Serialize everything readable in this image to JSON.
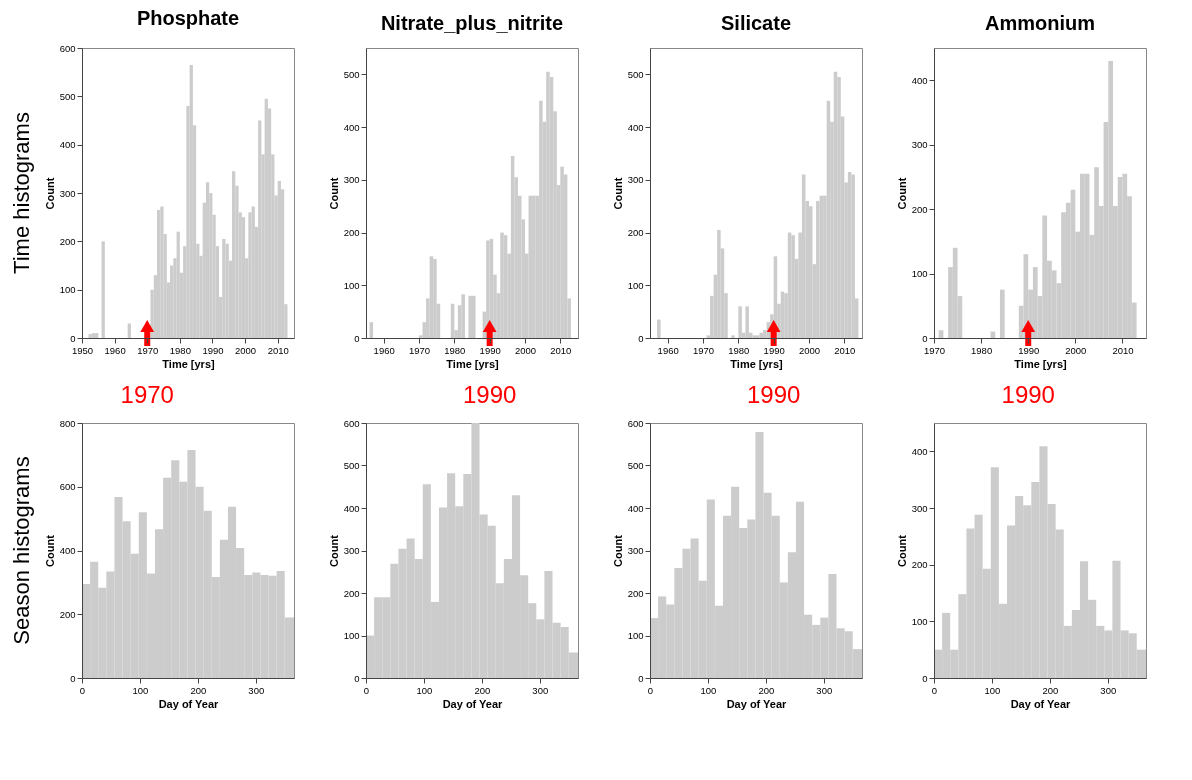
{
  "chart_data": [
    {
      "type": "histogram",
      "title": "Phosphate",
      "xlabel": "Time [yrs]",
      "ylabel": "Count",
      "color": "#cccccc",
      "xlim": [
        1950,
        2015
      ],
      "xticks": [
        1950,
        1960,
        1970,
        1980,
        1990,
        2000,
        2010
      ],
      "ylim": [
        0,
        600
      ],
      "yticks": [
        0,
        100,
        200,
        300,
        400,
        500,
        600
      ],
      "bins": [
        1950,
        1951,
        1952,
        1953,
        1954,
        1955,
        1956,
        1957,
        1958,
        1959,
        1960,
        1961,
        1962,
        1963,
        1964,
        1965,
        1966,
        1967,
        1968,
        1969,
        1970,
        1971,
        1972,
        1973,
        1974,
        1975,
        1976,
        1977,
        1978,
        1979,
        1980,
        1981,
        1982,
        1983,
        1984,
        1985,
        1986,
        1987,
        1988,
        1989,
        1990,
        1991,
        1992,
        1993,
        1994,
        1995,
        1996,
        1997,
        1998,
        1999,
        2000,
        2001,
        2002,
        2003,
        2004,
        2005,
        2006,
        2007,
        2008,
        2009,
        2010,
        2011,
        2012,
        2013,
        2014,
        2015
      ],
      "values": [
        0,
        0,
        8,
        10,
        10,
        0,
        200,
        0,
        0,
        0,
        0,
        0,
        0,
        0,
        30,
        0,
        0,
        0,
        0,
        0,
        0,
        100,
        130,
        265,
        272,
        215,
        115,
        150,
        165,
        220,
        135,
        190,
        480,
        565,
        440,
        195,
        170,
        280,
        322,
        300,
        255,
        190,
        85,
        205,
        195,
        160,
        345,
        315,
        260,
        250,
        165,
        260,
        272,
        230,
        450,
        380,
        495,
        475,
        380,
        295,
        325,
        308,
        70,
        0,
        0
      ],
      "annotations": [
        "Time histograms"
      ],
      "ref_lines": [
        {
          "axis": "x",
          "value": 1970,
          "label": "1970",
          "color": "#ff0000"
        }
      ]
    },
    {
      "type": "histogram",
      "title": "Nitrate_plus_nitrite",
      "xlabel": "Time [yrs]",
      "ylabel": "Count",
      "color": "#cccccc",
      "xlim": [
        1955,
        2015
      ],
      "xticks": [
        1960,
        1970,
        1980,
        1990,
        2000,
        2010
      ],
      "ylim": [
        0,
        550
      ],
      "yticks": [
        0,
        100,
        200,
        300,
        400,
        500
      ],
      "bins": [
        1955,
        1956,
        1957,
        1958,
        1959,
        1960,
        1961,
        1962,
        1963,
        1964,
        1965,
        1966,
        1967,
        1968,
        1969,
        1970,
        1971,
        1972,
        1973,
        1974,
        1975,
        1976,
        1977,
        1978,
        1979,
        1980,
        1981,
        1982,
        1983,
        1984,
        1985,
        1986,
        1987,
        1988,
        1989,
        1990,
        1991,
        1992,
        1993,
        1994,
        1995,
        1996,
        1997,
        1998,
        1999,
        2000,
        2001,
        2002,
        2003,
        2004,
        2005,
        2006,
        2007,
        2008,
        2009,
        2010,
        2011,
        2012,
        2013,
        2014,
        2015
      ],
      "values": [
        0,
        30,
        0,
        0,
        0,
        0,
        0,
        0,
        0,
        0,
        0,
        0,
        0,
        0,
        0,
        5,
        30,
        75,
        155,
        150,
        65,
        0,
        0,
        0,
        65,
        15,
        62,
        83,
        0,
        80,
        80,
        0,
        0,
        50,
        185,
        188,
        120,
        85,
        200,
        195,
        160,
        345,
        305,
        270,
        225,
        160,
        270,
        270,
        270,
        450,
        410,
        505,
        495,
        430,
        290,
        325,
        310,
        75,
        0,
        0
      ],
      "ref_lines": [
        {
          "axis": "x",
          "value": 1990,
          "label": "1990",
          "color": "#ff0000"
        }
      ]
    },
    {
      "type": "histogram",
      "title": "Silicate",
      "xlabel": "Time [yrs]",
      "ylabel": "Count",
      "color": "#cccccc",
      "xlim": [
        1955,
        2015
      ],
      "xticks": [
        1960,
        1970,
        1980,
        1990,
        2000,
        2010
      ],
      "ylim": [
        0,
        550
      ],
      "yticks": [
        0,
        100,
        200,
        300,
        400,
        500
      ],
      "bins": [
        1955,
        1956,
        1957,
        1958,
        1959,
        1960,
        1961,
        1962,
        1963,
        1964,
        1965,
        1966,
        1967,
        1968,
        1969,
        1970,
        1971,
        1972,
        1973,
        1974,
        1975,
        1976,
        1977,
        1978,
        1979,
        1980,
        1981,
        1982,
        1983,
        1984,
        1985,
        1986,
        1987,
        1988,
        1989,
        1990,
        1991,
        1992,
        1993,
        1994,
        1995,
        1996,
        1997,
        1998,
        1999,
        2000,
        2001,
        2002,
        2003,
        2004,
        2005,
        2006,
        2007,
        2008,
        2009,
        2010,
        2011,
        2012,
        2013,
        2014,
        2015
      ],
      "values": [
        0,
        0,
        35,
        0,
        0,
        0,
        0,
        0,
        0,
        0,
        0,
        0,
        0,
        0,
        0,
        0,
        5,
        80,
        120,
        205,
        170,
        85,
        0,
        5,
        0,
        60,
        10,
        60,
        10,
        5,
        5,
        10,
        15,
        30,
        45,
        155,
        65,
        88,
        85,
        200,
        195,
        150,
        200,
        310,
        260,
        250,
        140,
        260,
        270,
        270,
        450,
        410,
        505,
        495,
        420,
        295,
        315,
        310,
        75,
        0
      ],
      "ref_lines": [
        {
          "axis": "x",
          "value": 1990,
          "label": "1990",
          "color": "#ff0000"
        }
      ]
    },
    {
      "type": "histogram",
      "title": "Ammonium",
      "xlabel": "Time [yrs]",
      "ylabel": "Count",
      "color": "#cccccc",
      "xlim": [
        1970,
        2015
      ],
      "xticks": [
        1970,
        1980,
        1990,
        2000,
        2010
      ],
      "ylim": [
        0,
        450
      ],
      "yticks": [
        0,
        100,
        200,
        300,
        400
      ],
      "bins": [
        1970,
        1971,
        1972,
        1973,
        1974,
        1975,
        1976,
        1977,
        1978,
        1979,
        1980,
        1981,
        1982,
        1983,
        1984,
        1985,
        1986,
        1987,
        1988,
        1989,
        1990,
        1991,
        1992,
        1993,
        1994,
        1995,
        1996,
        1997,
        1998,
        1999,
        2000,
        2001,
        2002,
        2003,
        2004,
        2005,
        2006,
        2007,
        2008,
        2009,
        2010,
        2011,
        2012,
        2013,
        2014,
        2015
      ],
      "values": [
        0,
        12,
        0,
        110,
        140,
        65,
        0,
        0,
        0,
        0,
        0,
        0,
        10,
        0,
        75,
        0,
        0,
        0,
        50,
        130,
        75,
        110,
        65,
        190,
        120,
        105,
        85,
        195,
        210,
        230,
        165,
        255,
        255,
        160,
        265,
        205,
        335,
        430,
        205,
        250,
        255,
        220,
        55,
        0,
        0
      ],
      "ref_lines": [
        {
          "axis": "x",
          "value": 1990,
          "label": "1990",
          "color": "#ff0000"
        }
      ]
    },
    {
      "type": "histogram",
      "xlabel": "Day of Year",
      "ylabel": "Count",
      "color": "#cccccc",
      "xlim": [
        0,
        366
      ],
      "xticks": [
        0,
        100,
        200,
        300
      ],
      "ylim": [
        0,
        800
      ],
      "yticks": [
        0,
        200,
        400,
        600,
        800
      ],
      "bins": [
        0,
        14,
        28,
        42,
        56,
        70,
        84,
        98,
        112,
        126,
        140,
        154,
        168,
        182,
        196,
        210,
        224,
        238,
        252,
        266,
        280,
        294,
        308,
        322,
        336,
        350,
        366
      ],
      "values": [
        295,
        365,
        283,
        334,
        568,
        492,
        390,
        520,
        328,
        467,
        628,
        683,
        616,
        715,
        600,
        525,
        317,
        434,
        537,
        408,
        323,
        331,
        323,
        321,
        336,
        190
      ],
      "annotations": [
        "Season histograms"
      ]
    },
    {
      "type": "histogram",
      "xlabel": "Day of Year",
      "ylabel": "Count",
      "color": "#cccccc",
      "xlim": [
        0,
        366
      ],
      "xticks": [
        0,
        100,
        200,
        300
      ],
      "ylim": [
        0,
        600
      ],
      "yticks": [
        0,
        100,
        200,
        300,
        400,
        500,
        600
      ],
      "bins": [
        0,
        14,
        28,
        42,
        56,
        70,
        84,
        98,
        112,
        126,
        140,
        154,
        168,
        182,
        196,
        210,
        224,
        238,
        252,
        266,
        280,
        294,
        308,
        322,
        336,
        350,
        366
      ],
      "values": [
        100,
        190,
        190,
        269,
        304,
        328,
        280,
        456,
        179,
        401,
        482,
        404,
        480,
        600,
        385,
        358,
        223,
        280,
        430,
        242,
        176,
        138,
        252,
        130,
        120,
        60
      ]
    },
    {
      "type": "histogram",
      "xlabel": "Day of Year",
      "ylabel": "Count",
      "color": "#cccccc",
      "xlim": [
        0,
        366
      ],
      "xticks": [
        0,
        100,
        200,
        300
      ],
      "ylim": [
        0,
        600
      ],
      "yticks": [
        0,
        100,
        200,
        300,
        400,
        500,
        600
      ],
      "bins": [
        0,
        14,
        28,
        42,
        56,
        70,
        84,
        98,
        112,
        126,
        140,
        154,
        168,
        182,
        196,
        210,
        224,
        238,
        252,
        266,
        280,
        294,
        308,
        322,
        336,
        350,
        366
      ],
      "values": [
        141,
        192,
        173,
        259,
        304,
        328,
        229,
        420,
        170,
        382,
        450,
        353,
        373,
        579,
        436,
        382,
        225,
        296,
        415,
        149,
        125,
        142,
        245,
        117,
        110,
        68
      ]
    },
    {
      "type": "histogram",
      "xlabel": "Day of Year",
      "ylabel": "Count",
      "color": "#cccccc",
      "xlim": [
        0,
        366
      ],
      "xticks": [
        0,
        100,
        200,
        300
      ],
      "ylim": [
        0,
        450
      ],
      "yticks": [
        0,
        100,
        200,
        300,
        400
      ],
      "bins": [
        0,
        14,
        28,
        42,
        56,
        70,
        84,
        98,
        112,
        126,
        140,
        154,
        168,
        182,
        196,
        210,
        224,
        238,
        252,
        266,
        280,
        294,
        308,
        322,
        336,
        350,
        366
      ],
      "values": [
        50,
        115,
        50,
        148,
        264,
        288,
        193,
        372,
        131,
        269,
        321,
        305,
        346,
        409,
        307,
        262,
        92,
        120,
        206,
        138,
        92,
        84,
        207,
        84,
        79,
        50
      ]
    }
  ]
}
